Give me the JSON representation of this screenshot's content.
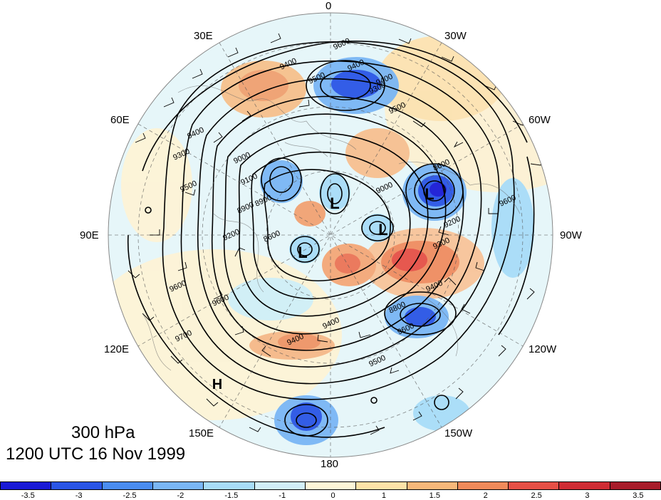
{
  "figure": {
    "level_label": "300 hPa",
    "time_label": "1200 UTC 16 Nov 1999"
  },
  "longitude_labels": [
    "0",
    "30W",
    "60W",
    "90W",
    "120W",
    "150W",
    "180",
    "150E",
    "120E",
    "90E",
    "60E",
    "30E"
  ],
  "contour_labels": [
    "9600",
    "9500",
    "9400",
    "9400",
    "9300",
    "9000",
    "9500",
    "9500",
    "9400",
    "9300",
    "8800",
    "8900",
    "9300",
    "9200",
    "9400",
    "9600",
    "9600",
    "9700",
    "9400",
    "9000",
    "9100",
    "8900",
    "8600",
    "8600",
    "9200",
    "9500",
    "9600",
    "9400",
    "9400",
    "9600"
  ],
  "pressure_centers": [
    {
      "label": "L"
    },
    {
      "label": "L"
    },
    {
      "label": "L"
    },
    {
      "label": "L"
    },
    {
      "label": "L"
    },
    {
      "label": "L"
    },
    {
      "label": "H"
    }
  ],
  "colorbar": {
    "colors": [
      "#1a1ad6",
      "#2a55e6",
      "#4a8cf0",
      "#7ab6f5",
      "#a8dcf8",
      "#d2eef8",
      "#fdf5d8",
      "#fde2a8",
      "#f8b87a",
      "#f08a5a",
      "#e65046",
      "#cf2c34",
      "#a81c2a"
    ],
    "tick_labels": [
      "-3.5",
      "-3",
      "-2.5",
      "-2",
      "-1.5",
      "-1",
      "0",
      "1",
      "1.5",
      "2",
      "2.5",
      "3",
      "3.5"
    ]
  }
}
